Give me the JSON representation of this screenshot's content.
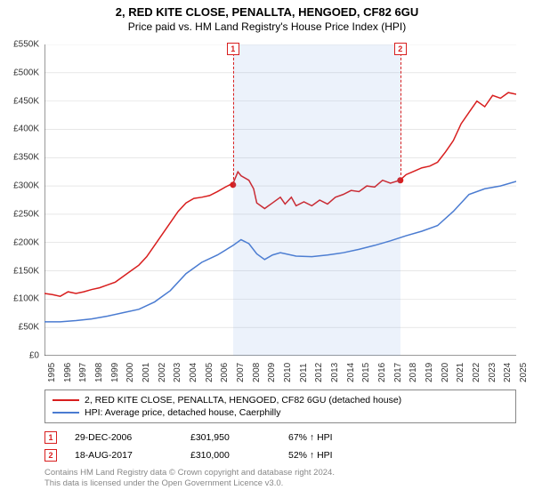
{
  "title": "2, RED KITE CLOSE, PENALLTA, HENGOED, CF82 6GU",
  "subtitle": "Price paid vs. HM Land Registry's House Price Index (HPI)",
  "chart": {
    "type": "line",
    "background_color": "#ffffff",
    "grid_color": "#d9d9d9",
    "axis_color": "#333333",
    "ylim": [
      0,
      550
    ],
    "ytick_step": 50,
    "y_prefix": "£",
    "y_suffix": "K",
    "ylabels": [
      "£0",
      "£50K",
      "£100K",
      "£150K",
      "£200K",
      "£250K",
      "£300K",
      "£350K",
      "£400K",
      "£450K",
      "£500K",
      "£550K"
    ],
    "xlim": [
      1995,
      2025
    ],
    "xtick_step": 1,
    "xlabels": [
      "1995",
      "1996",
      "1997",
      "1998",
      "1999",
      "2000",
      "2001",
      "2002",
      "2003",
      "2004",
      "2005",
      "2006",
      "2007",
      "2008",
      "2009",
      "2010",
      "2011",
      "2012",
      "2013",
      "2014",
      "2015",
      "2016",
      "2017",
      "2018",
      "2019",
      "2020",
      "2021",
      "2022",
      "2023",
      "2024",
      "2025"
    ],
    "shade_region": {
      "x_start": 2006.99,
      "x_end": 2017.63,
      "color": "rgba(100,150,220,0.12)"
    },
    "series": [
      {
        "name": "2, RED KITE CLOSE, PENALLTA, HENGOED, CF82 6GU (detached house)",
        "color": "#d81e1e",
        "line_width": 1.5,
        "data": [
          [
            1995,
            110
          ],
          [
            1995.5,
            108
          ],
          [
            1996,
            105
          ],
          [
            1996.5,
            113
          ],
          [
            1997,
            110
          ],
          [
            1997.5,
            113
          ],
          [
            1998,
            117
          ],
          [
            1998.5,
            120
          ],
          [
            1999,
            125
          ],
          [
            1999.5,
            130
          ],
          [
            2000,
            140
          ],
          [
            2000.5,
            150
          ],
          [
            2001,
            160
          ],
          [
            2001.5,
            175
          ],
          [
            2002,
            195
          ],
          [
            2002.5,
            215
          ],
          [
            2003,
            235
          ],
          [
            2003.5,
            255
          ],
          [
            2004,
            270
          ],
          [
            2004.5,
            278
          ],
          [
            2005,
            280
          ],
          [
            2005.5,
            283
          ],
          [
            2006,
            290
          ],
          [
            2006.5,
            298
          ],
          [
            2007,
            305
          ],
          [
            2007.3,
            325
          ],
          [
            2007.5,
            318
          ],
          [
            2008,
            310
          ],
          [
            2008.3,
            295
          ],
          [
            2008.5,
            270
          ],
          [
            2009,
            260
          ],
          [
            2009.5,
            270
          ],
          [
            2010,
            280
          ],
          [
            2010.3,
            268
          ],
          [
            2010.7,
            280
          ],
          [
            2011,
            265
          ],
          [
            2011.5,
            272
          ],
          [
            2012,
            265
          ],
          [
            2012.5,
            275
          ],
          [
            2013,
            268
          ],
          [
            2013.5,
            280
          ],
          [
            2014,
            285
          ],
          [
            2014.5,
            292
          ],
          [
            2015,
            290
          ],
          [
            2015.5,
            300
          ],
          [
            2016,
            298
          ],
          [
            2016.5,
            310
          ],
          [
            2017,
            305
          ],
          [
            2017.6,
            310
          ],
          [
            2018,
            320
          ],
          [
            2018.5,
            326
          ],
          [
            2019,
            332
          ],
          [
            2019.5,
            335
          ],
          [
            2020,
            342
          ],
          [
            2020.5,
            360
          ],
          [
            2021,
            380
          ],
          [
            2021.5,
            410
          ],
          [
            2022,
            430
          ],
          [
            2022.5,
            450
          ],
          [
            2023,
            440
          ],
          [
            2023.5,
            460
          ],
          [
            2024,
            455
          ],
          [
            2024.5,
            465
          ],
          [
            2025,
            462
          ]
        ]
      },
      {
        "name": "HPI: Average price, detached house, Caerphilly",
        "color": "#4a7bd1",
        "line_width": 1.5,
        "data": [
          [
            1995,
            60
          ],
          [
            1996,
            60
          ],
          [
            1997,
            62
          ],
          [
            1998,
            65
          ],
          [
            1999,
            70
          ],
          [
            2000,
            76
          ],
          [
            2001,
            82
          ],
          [
            2002,
            95
          ],
          [
            2003,
            115
          ],
          [
            2004,
            145
          ],
          [
            2005,
            165
          ],
          [
            2006,
            178
          ],
          [
            2007,
            195
          ],
          [
            2007.5,
            205
          ],
          [
            2008,
            198
          ],
          [
            2008.5,
            180
          ],
          [
            2009,
            170
          ],
          [
            2009.5,
            178
          ],
          [
            2010,
            182
          ],
          [
            2011,
            176
          ],
          [
            2012,
            175
          ],
          [
            2013,
            178
          ],
          [
            2014,
            182
          ],
          [
            2015,
            188
          ],
          [
            2016,
            195
          ],
          [
            2017,
            203
          ],
          [
            2018,
            212
          ],
          [
            2019,
            220
          ],
          [
            2020,
            230
          ],
          [
            2021,
            255
          ],
          [
            2022,
            285
          ],
          [
            2023,
            295
          ],
          [
            2024,
            300
          ],
          [
            2025,
            308
          ]
        ]
      }
    ],
    "markers": [
      {
        "id": "1",
        "x": 2006.99,
        "y": 302,
        "color": "#d81e1e"
      },
      {
        "id": "2",
        "x": 2017.63,
        "y": 310,
        "color": "#d81e1e"
      }
    ]
  },
  "legend": {
    "items": [
      {
        "color": "#d81e1e",
        "label": "2, RED KITE CLOSE, PENALLTA, HENGOED, CF82 6GU (detached house)"
      },
      {
        "color": "#4a7bd1",
        "label": "HPI: Average price, detached house, Caerphilly"
      }
    ]
  },
  "transactions": [
    {
      "id": "1",
      "color": "#d81e1e",
      "date": "29-DEC-2006",
      "price": "£301,950",
      "pct": "67% ↑ HPI"
    },
    {
      "id": "2",
      "color": "#d81e1e",
      "date": "18-AUG-2017",
      "price": "£310,000",
      "pct": "52% ↑ HPI"
    }
  ],
  "footnote_line1": "Contains HM Land Registry data © Crown copyright and database right 2024.",
  "footnote_line2": "This data is licensed under the Open Government Licence v3.0."
}
